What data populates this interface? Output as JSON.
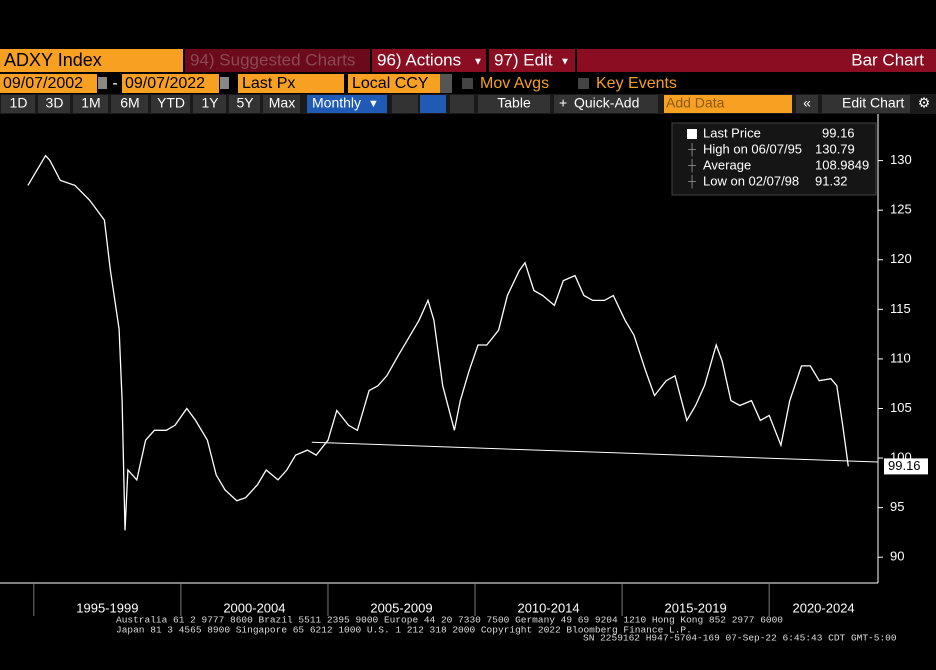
{
  "toolbar": {
    "security": "ADXY Index",
    "suggested": "94) Suggested Charts",
    "actions": "96) Actions",
    "edit": "97) Edit",
    "chart_type": "Bar Chart",
    "start_date": "09/07/2002",
    "date_sep": "-",
    "end_date": "09/07/2022",
    "field": "Last Px",
    "currency": "Local CCY",
    "mov_avgs": "Mov Avgs",
    "key_events": "Key Events",
    "periods": [
      "1D",
      "3D",
      "1M",
      "6M",
      "YTD",
      "1Y",
      "5Y",
      "Max"
    ],
    "frequency": "Monthly",
    "table": "Table",
    "quick_add": "Quick-Add",
    "add_data": "Add Data",
    "edit_chart": "Edit Chart"
  },
  "chart_data": {
    "type": "line",
    "legend": [
      {
        "label": "Last Price",
        "value": 99.16
      },
      {
        "label": "High on 06/07/95",
        "value": 130.79
      },
      {
        "label": "Average",
        "value": 108.9849
      },
      {
        "label": "Low on 02/07/98",
        "value": 91.32
      }
    ],
    "series": [
      {
        "name": "Last Price",
        "color": "#ffffff",
        "x": [
          1994.8,
          1995.4,
          1995.55,
          1995.9,
          1996.4,
          1996.9,
          1997.4,
          1997.6,
          1997.9,
          1998.0,
          1998.1,
          1998.2,
          1998.5,
          1998.8,
          1999.1,
          1999.5,
          1999.8,
          2000.2,
          2000.5,
          2000.9,
          2001.2,
          2001.5,
          2001.9,
          2002.2,
          2002.6,
          2002.9,
          2003.3,
          2003.6,
          2003.9,
          2004.3,
          2004.6,
          2005.0,
          2005.3,
          2005.7,
          2006.0,
          2006.4,
          2006.7,
          2007.0,
          2007.4,
          2007.7,
          2008.1,
          2008.4,
          2008.6,
          2008.9,
          2009.3,
          2009.5,
          2009.8,
          2010.1,
          2010.4,
          2010.8,
          2011.1,
          2011.5,
          2011.7,
          2012.0,
          2012.3,
          2012.7,
          2013.0,
          2013.4,
          2013.7,
          2014.0,
          2014.4,
          2014.7,
          2015.1,
          2015.4,
          2015.8,
          2016.1,
          2016.5,
          2016.8,
          2017.2,
          2017.5,
          2017.8,
          2018.2,
          2018.4,
          2018.7,
          2019.0,
          2019.4,
          2019.7,
          2020.0,
          2020.4,
          2020.7,
          2021.1,
          2021.4,
          2021.7,
          2022.1,
          2022.3,
          2022.5,
          2022.69
        ],
        "values": [
          127.5,
          130.5,
          130,
          128,
          127.5,
          126,
          124,
          119,
          113,
          105.8,
          92.7,
          98.8,
          97.8,
          101.8,
          102.8,
          102.8,
          103.3,
          105,
          103.8,
          101.8,
          98.3,
          96.8,
          95.7,
          96,
          97.3,
          98.8,
          97.8,
          98.8,
          100.3,
          100.8,
          100.3,
          101.8,
          104.8,
          103.3,
          102.8,
          106.8,
          107.3,
          108.3,
          110.4,
          111.9,
          113.9,
          115.9,
          113.9,
          107.3,
          102.8,
          105.8,
          108.8,
          111.4,
          111.4,
          112.9,
          116.4,
          118.9,
          119.7,
          116.9,
          116.4,
          115.4,
          117.9,
          118.4,
          116.4,
          115.9,
          115.9,
          116.4,
          113.9,
          112.4,
          108.8,
          106.3,
          107.8,
          108.3,
          103.8,
          105.3,
          107.3,
          111.4,
          109.8,
          105.8,
          105.3,
          105.8,
          103.8,
          104.3,
          101.3,
          105.8,
          109.3,
          109.3,
          107.8,
          108,
          107.3,
          103.3,
          99.16
        ]
      }
    ],
    "trendline": {
      "x": [
        2004.45,
        2023.7
      ],
      "values": [
        101.6,
        99.6
      ]
    },
    "last_price": 99.16,
    "xlim": [
      1993.85,
      2023.7
    ],
    "xticks": [
      {
        "value": 1997.5,
        "label": "1995-1999"
      },
      {
        "value": 2002.5,
        "label": "2000-2004"
      },
      {
        "value": 2007.5,
        "label": "2005-2009"
      },
      {
        "value": 2012.5,
        "label": "2010-2014"
      },
      {
        "value": 2017.5,
        "label": "2015-2019"
      },
      {
        "value": 2021.85,
        "label": "2020-2024"
      }
    ],
    "xminorticks": [
      1995,
      2000,
      2005,
      2010,
      2015,
      2020
    ],
    "ylim": [
      87.4,
      134.7
    ],
    "yticks": [
      90,
      95,
      100,
      105,
      110,
      115,
      120,
      125,
      130
    ]
  },
  "footer": [
    "Australia 61 2 9777 8600 Brazil 5511 2395 9000 Europe 44 20 7330 7500 Germany 49 69 9204 1210 Hong Kong 852 2977 6000",
    "Japan 81 3 4565 8900       Singapore 65 6212 1000       U.S. 1 212 318 2000                 Copyright 2022 Bloomberg Finance L.P.",
    "SN 2259162 H947-5704-169 07-Sep-22  6:45:43 CDT  GMT-5:00"
  ]
}
